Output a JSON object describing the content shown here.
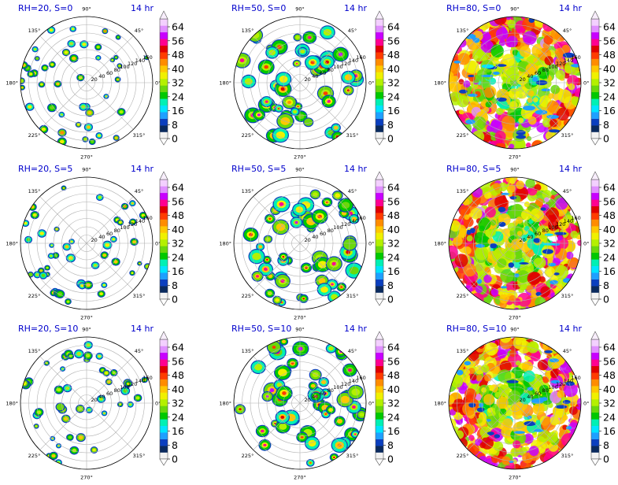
{
  "figure": {
    "colorbar_ticks": [
      "0",
      "8",
      "16",
      "24",
      "32",
      "40",
      "48",
      "56",
      "64"
    ],
    "angle_labels": [
      "0°",
      "45°",
      "90°",
      "135°",
      "180°",
      "225°",
      "270°",
      "315°"
    ],
    "radial_labels": [
      "20",
      "40",
      "60",
      "80",
      "100",
      "120",
      "140",
      "160"
    ],
    "colormap": [
      "#f2f2f2",
      "#0a2a5e",
      "#0b3fbf",
      "#1ea0ff",
      "#00e5ff",
      "#00f0b4",
      "#00c800",
      "#6ad80c",
      "#b4f000",
      "#f0f000",
      "#ffc800",
      "#ff8c00",
      "#ff3c00",
      "#e00000",
      "#ff0090",
      "#c800ff",
      "#e090ff",
      "#f3d0ff"
    ],
    "title_color": "#0000cc"
  },
  "chart_data": [
    {
      "type": "heatmap",
      "title_left": "RH=20, S=0",
      "title_right": "14 hr",
      "rh": 20,
      "s": 0,
      "coverage": "sparse",
      "clim": [
        0,
        64
      ]
    },
    {
      "type": "heatmap",
      "title_left": "RH=50, S=0",
      "title_right": "14 hr",
      "rh": 50,
      "s": 0,
      "coverage": "medium",
      "clim": [
        0,
        64
      ]
    },
    {
      "type": "heatmap",
      "title_left": "RH=80, S=0",
      "title_right": "14 hr",
      "rh": 80,
      "s": 0,
      "coverage": "full",
      "clim": [
        0,
        64
      ]
    },
    {
      "type": "heatmap",
      "title_left": "RH=20, S=5",
      "title_right": "14 hr",
      "rh": 20,
      "s": 5,
      "coverage": "sparse",
      "clim": [
        0,
        64
      ]
    },
    {
      "type": "heatmap",
      "title_left": "RH=50, S=5",
      "title_right": "14 hr",
      "rh": 50,
      "s": 5,
      "coverage": "medium",
      "clim": [
        0,
        64
      ]
    },
    {
      "type": "heatmap",
      "title_left": "RH=80, S=5",
      "title_right": "14 hr",
      "rh": 80,
      "s": 5,
      "coverage": "full",
      "clim": [
        0,
        64
      ]
    },
    {
      "type": "heatmap",
      "title_left": "RH=20, S=10",
      "title_right": "14 hr",
      "rh": 20,
      "s": 10,
      "coverage": "sparse",
      "clim": [
        0,
        64
      ]
    },
    {
      "type": "heatmap",
      "title_left": "RH=50, S=10",
      "title_right": "14 hr",
      "rh": 50,
      "s": 10,
      "coverage": "medium",
      "clim": [
        0,
        64
      ]
    },
    {
      "type": "heatmap",
      "title_left": "RH=80, S=10",
      "title_right": "14 hr",
      "rh": 80,
      "s": 10,
      "coverage": "full",
      "clim": [
        0,
        64
      ]
    }
  ]
}
